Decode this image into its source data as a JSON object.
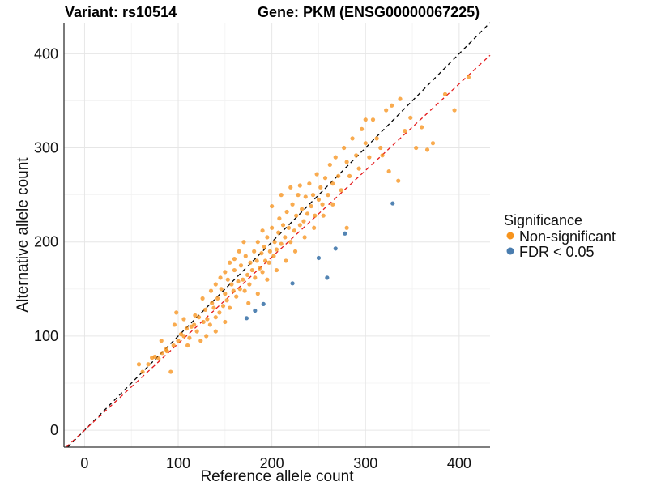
{
  "chart_data": {
    "type": "scatter",
    "title_left": "Variant: rs10514",
    "title_right": "Gene: PKM (ENSG00000067225)",
    "xlabel": "Reference allele count",
    "ylabel": "Alternative allele count",
    "xlim": [
      -22,
      433
    ],
    "ylim": [
      -18,
      433
    ],
    "x_ticks": [
      0,
      100,
      200,
      300,
      400
    ],
    "y_ticks": [
      0,
      100,
      200,
      300,
      400
    ],
    "x_tick_labels": [
      "0",
      "100",
      "200",
      "300",
      "400"
    ],
    "y_tick_labels": [
      "0",
      "100",
      "200",
      "300",
      "400"
    ],
    "reference_lines": [
      {
        "name": "identity",
        "slope": 1.0,
        "intercept": 0,
        "color": "#000000",
        "style": "dashed"
      },
      {
        "name": "fit",
        "slope": 0.92,
        "intercept": 0,
        "color": "#e41a1c",
        "style": "dashed"
      }
    ],
    "legend": {
      "title": "Significance",
      "position": "right",
      "entries": [
        {
          "label": "Non-significant",
          "color": "#F7941D"
        },
        {
          "label": "FDR < 0.05",
          "color": "#4A7DAF"
        }
      ]
    },
    "series": [
      {
        "name": "Non-significant",
        "color": "#F7941D",
        "points": [
          [
            58,
            70
          ],
          [
            62,
            62
          ],
          [
            68,
            70
          ],
          [
            72,
            77
          ],
          [
            75,
            78
          ],
          [
            79,
            76
          ],
          [
            83,
            82
          ],
          [
            87,
            86
          ],
          [
            92,
            62
          ],
          [
            95,
            90
          ],
          [
            98,
            125
          ],
          [
            100,
            95
          ],
          [
            103,
            102
          ],
          [
            106,
            100
          ],
          [
            109,
            108
          ],
          [
            112,
            98
          ],
          [
            114,
            110
          ],
          [
            117,
            112
          ],
          [
            120,
            105
          ],
          [
            122,
            120
          ],
          [
            124,
            95
          ],
          [
            127,
            115
          ],
          [
            129,
            128
          ],
          [
            131,
            118
          ],
          [
            134,
            112
          ],
          [
            136,
            135
          ],
          [
            138,
            130
          ],
          [
            140,
            120
          ],
          [
            142,
            140
          ],
          [
            144,
            125
          ],
          [
            146,
            150
          ],
          [
            148,
            132
          ],
          [
            150,
            145
          ],
          [
            152,
            138
          ],
          [
            153,
            160
          ],
          [
            155,
            130
          ],
          [
            157,
            155
          ],
          [
            159,
            148
          ],
          [
            160,
            170
          ],
          [
            162,
            142
          ],
          [
            164,
            158
          ],
          [
            166,
            150
          ],
          [
            167,
            175
          ],
          [
            169,
            160
          ],
          [
            171,
            148
          ],
          [
            172,
            185
          ],
          [
            174,
            165
          ],
          [
            176,
            155
          ],
          [
            177,
            178
          ],
          [
            179,
            170
          ],
          [
            181,
            190
          ],
          [
            182,
            162
          ],
          [
            184,
            180
          ],
          [
            185,
            200
          ],
          [
            187,
            172
          ],
          [
            189,
            188
          ],
          [
            190,
            168
          ],
          [
            192,
            195
          ],
          [
            193,
            180
          ],
          [
            195,
            205
          ],
          [
            197,
            178
          ],
          [
            198,
            190
          ],
          [
            200,
            215
          ],
          [
            202,
            185
          ],
          [
            203,
            200
          ],
          [
            205,
            192
          ],
          [
            207,
            210
          ],
          [
            208,
            225
          ],
          [
            210,
            198
          ],
          [
            212,
            218
          ],
          [
            214,
            205
          ],
          [
            216,
            232
          ],
          [
            218,
            215
          ],
          [
            220,
            200
          ],
          [
            222,
            240
          ],
          [
            224,
            212
          ],
          [
            226,
            228
          ],
          [
            228,
            250
          ],
          [
            230,
            218
          ],
          [
            232,
            235
          ],
          [
            234,
            222
          ],
          [
            236,
            248
          ],
          [
            238,
            230
          ],
          [
            240,
            262
          ],
          [
            242,
            238
          ],
          [
            244,
            250
          ],
          [
            246,
            228
          ],
          [
            248,
            272
          ],
          [
            250,
            245
          ],
          [
            252,
            258
          ],
          [
            254,
            240
          ],
          [
            257,
            268
          ],
          [
            260,
            250
          ],
          [
            262,
            282
          ],
          [
            265,
            262
          ],
          [
            268,
            290
          ],
          [
            271,
            270
          ],
          [
            274,
            255
          ],
          [
            277,
            300
          ],
          [
            280,
            285
          ],
          [
            283,
            270
          ],
          [
            286,
            310
          ],
          [
            290,
            292
          ],
          [
            293,
            278
          ],
          [
            296,
            320
          ],
          [
            300,
            305
          ],
          [
            304,
            290
          ],
          [
            308,
            330
          ],
          [
            312,
            310
          ],
          [
            316,
            300
          ],
          [
            322,
            340
          ],
          [
            328,
            345
          ],
          [
            337,
            352
          ],
          [
            342,
            318
          ],
          [
            348,
            332
          ],
          [
            354,
            300
          ],
          [
            360,
            322
          ],
          [
            366,
            298
          ],
          [
            372,
            305
          ],
          [
            280,
            215
          ],
          [
            300,
            330
          ],
          [
            318,
            292
          ],
          [
            325,
            275
          ],
          [
            335,
            265
          ],
          [
            410,
            375
          ],
          [
            385,
            357
          ],
          [
            395,
            340
          ],
          [
            130,
            100
          ],
          [
            140,
            105
          ],
          [
            150,
            115
          ],
          [
            110,
            90
          ],
          [
            118,
            122
          ],
          [
            126,
            140
          ],
          [
            135,
            148
          ],
          [
            145,
            162
          ],
          [
            155,
            178
          ],
          [
            165,
            190
          ],
          [
            175,
            135
          ],
          [
            185,
            145
          ],
          [
            195,
            160
          ],
          [
            205,
            170
          ],
          [
            215,
            180
          ],
          [
            225,
            190
          ],
          [
            235,
            205
          ],
          [
            245,
            215
          ],
          [
            255,
            228
          ],
          [
            265,
            240
          ],
          [
            200,
            238
          ],
          [
            210,
            250
          ],
          [
            220,
            258
          ],
          [
            170,
            200
          ],
          [
            160,
            182
          ],
          [
            150,
            168
          ],
          [
            140,
            155
          ],
          [
            96,
            112
          ],
          [
            88,
            84
          ],
          [
            82,
            95
          ],
          [
            106,
            118
          ],
          [
            190,
            212
          ],
          [
            230,
            260
          ]
        ]
      },
      {
        "name": "FDR < 0.05",
        "color": "#4A7DAF",
        "points": [
          [
            173,
            119
          ],
          [
            182,
            127
          ],
          [
            191,
            134
          ],
          [
            222,
            156
          ],
          [
            250,
            183
          ],
          [
            259,
            162
          ],
          [
            268,
            193
          ],
          [
            278,
            209
          ],
          [
            329,
            241
          ]
        ]
      }
    ]
  }
}
